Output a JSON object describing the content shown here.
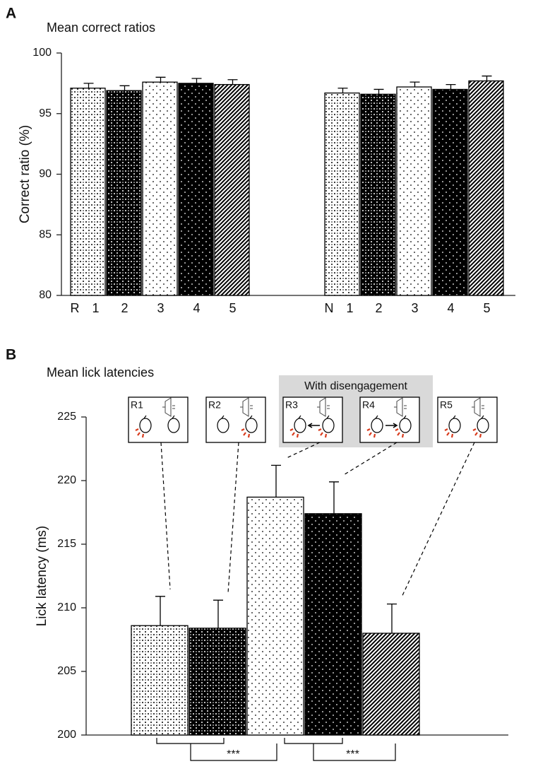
{
  "chart_data": [
    {
      "type": "bar",
      "panel": "A",
      "title": "Mean correct ratios",
      "ylabel": "Correct ratio  (%)",
      "ylim": [
        80,
        100
      ],
      "yticks": [
        80,
        85,
        90,
        95,
        100
      ],
      "groups": [
        {
          "name": "R",
          "categories": [
            "1",
            "2",
            "3",
            "4",
            "5"
          ],
          "values": [
            97.1,
            96.9,
            97.6,
            97.5,
            97.4
          ],
          "errors": [
            0.4,
            0.4,
            0.4,
            0.4,
            0.4
          ]
        },
        {
          "name": "N",
          "categories": [
            "1",
            "2",
            "3",
            "4",
            "5"
          ],
          "values": [
            96.7,
            96.6,
            97.2,
            97.0,
            97.7
          ],
          "errors": [
            0.4,
            0.4,
            0.4,
            0.4,
            0.4
          ]
        }
      ]
    },
    {
      "type": "bar",
      "panel": "B",
      "title": "Mean lick latencies",
      "ylabel": "Lick latency  (ms)",
      "ylim": [
        200,
        225
      ],
      "yticks": [
        200,
        205,
        210,
        215,
        220,
        225
      ],
      "categories": [
        "R1",
        "R2",
        "R3",
        "R4",
        "R5"
      ],
      "values": [
        208.6,
        208.4,
        218.7,
        217.4,
        208.0
      ],
      "errors": [
        2.3,
        2.2,
        2.5,
        2.5,
        2.3
      ],
      "inset_title": "With disengagement",
      "annotations": [
        "***",
        "***"
      ]
    }
  ]
}
